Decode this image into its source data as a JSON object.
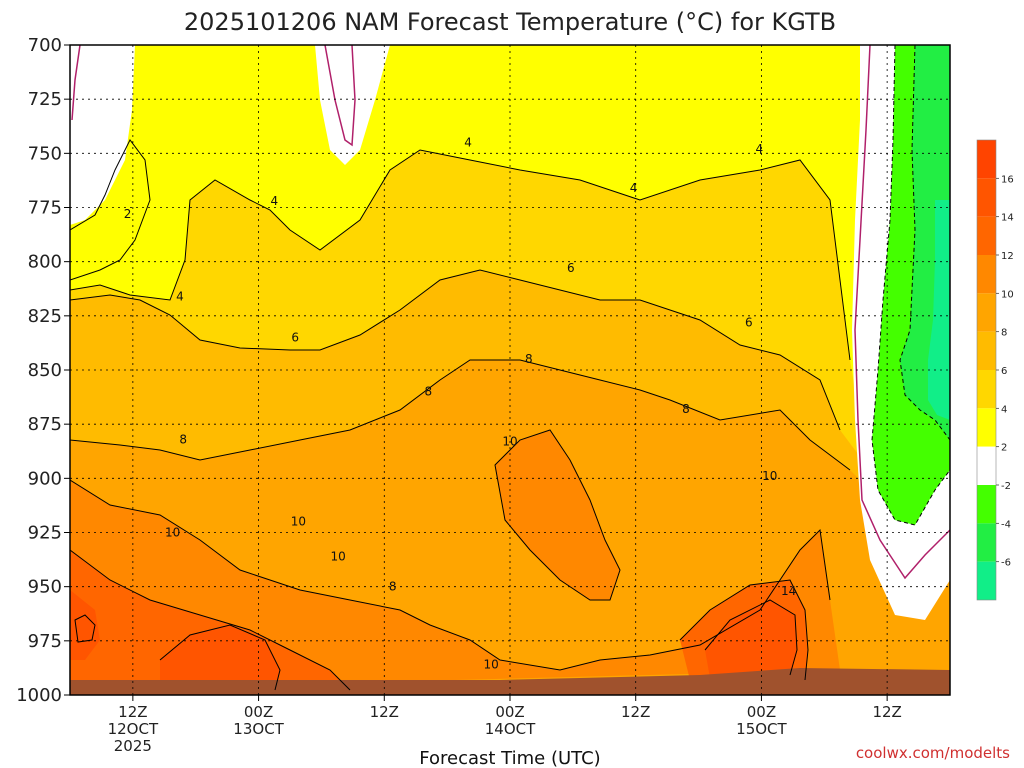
{
  "chart_data": {
    "type": "heatmap",
    "title": "2025101206 NAM Forecast Temperature (°C) for KGTB",
    "xlabel": "Forecast Time (UTC)",
    "ylabel": "",
    "credit": "coolwx.com/modelts",
    "y_axis": {
      "unit": "hPa",
      "range": [
        1000,
        700
      ],
      "ticks": [
        "700",
        "725",
        "750",
        "775",
        "800",
        "825",
        "850",
        "875",
        "900",
        "925",
        "950",
        "975",
        "1000"
      ]
    },
    "x_axis": {
      "range_hours": [
        0,
        84
      ],
      "ticks": [
        {
          "hour": 6,
          "line1": "12Z",
          "line2": "12OCT",
          "line3": "2025"
        },
        {
          "hour": 18,
          "line1": "00Z",
          "line2": "13OCT",
          "line3": ""
        },
        {
          "hour": 30,
          "line1": "12Z",
          "line2": "",
          "line3": ""
        },
        {
          "hour": 42,
          "line1": "00Z",
          "line2": "14OCT",
          "line3": ""
        },
        {
          "hour": 54,
          "line1": "12Z",
          "line2": "",
          "line3": ""
        },
        {
          "hour": 66,
          "line1": "00Z",
          "line2": "15OCT",
          "line3": ""
        },
        {
          "hour": 78,
          "line1": "12Z",
          "line2": "",
          "line3": ""
        }
      ]
    },
    "grid": true,
    "colorbar": {
      "placement": "right",
      "levels": [
        {
          "from": 16,
          "to": 18,
          "color": "#ff4400"
        },
        {
          "from": 14,
          "to": 16,
          "color": "#ff5500"
        },
        {
          "from": 12,
          "to": 14,
          "color": "#ff6600"
        },
        {
          "from": 10,
          "to": 12,
          "color": "#ff8800"
        },
        {
          "from": 8,
          "to": 10,
          "color": "#ffa500"
        },
        {
          "from": 6,
          "to": 8,
          "color": "#ffbb00"
        },
        {
          "from": 4,
          "to": 6,
          "color": "#ffd700"
        },
        {
          "from": 2,
          "to": 4,
          "color": "#ffff00"
        },
        {
          "from": -2,
          "to": 2,
          "color": "#ffffff"
        },
        {
          "from": -4,
          "to": -2,
          "color": "#44ff00"
        },
        {
          "from": -6,
          "to": -4,
          "color": "#22ee44"
        },
        {
          "from": -8,
          "to": -6,
          "color": "#11ee88"
        }
      ],
      "tick_labels": [
        "16",
        "14",
        "12",
        "10",
        "8",
        "6",
        "4",
        "2",
        "-2",
        "-4",
        "-6"
      ]
    },
    "contour_labels": [
      {
        "text": "2",
        "hour": 5.5,
        "pressure": 778
      },
      {
        "text": "4",
        "hour": 10.5,
        "pressure": 816
      },
      {
        "text": "4",
        "hour": 19.5,
        "pressure": 772
      },
      {
        "text": "4",
        "hour": 38.0,
        "pressure": 745
      },
      {
        "text": "4",
        "hour": 53.8,
        "pressure": 766
      },
      {
        "text": "4",
        "hour": 65.8,
        "pressure": 748
      },
      {
        "text": "6",
        "hour": 21.5,
        "pressure": 835
      },
      {
        "text": "6",
        "hour": 47.8,
        "pressure": 803
      },
      {
        "text": "6",
        "hour": 64.8,
        "pressure": 828
      },
      {
        "text": "8",
        "hour": 10.8,
        "pressure": 882
      },
      {
        "text": "8",
        "hour": 34.2,
        "pressure": 860
      },
      {
        "text": "8",
        "hour": 43.8,
        "pressure": 845
      },
      {
        "text": "8",
        "hour": 58.8,
        "pressure": 868
      },
      {
        "text": "8",
        "hour": 30.8,
        "pressure": 950
      },
      {
        "text": "10",
        "hour": 9.8,
        "pressure": 925
      },
      {
        "text": "10",
        "hour": 21.8,
        "pressure": 920
      },
      {
        "text": "10",
        "hour": 25.6,
        "pressure": 936
      },
      {
        "text": "10",
        "hour": 42.0,
        "pressure": 883
      },
      {
        "text": "10",
        "hour": 66.8,
        "pressure": 899
      },
      {
        "text": "10",
        "hour": 40.2,
        "pressure": 986
      },
      {
        "text": "14",
        "hour": 68.6,
        "pressure": 952
      }
    ]
  }
}
